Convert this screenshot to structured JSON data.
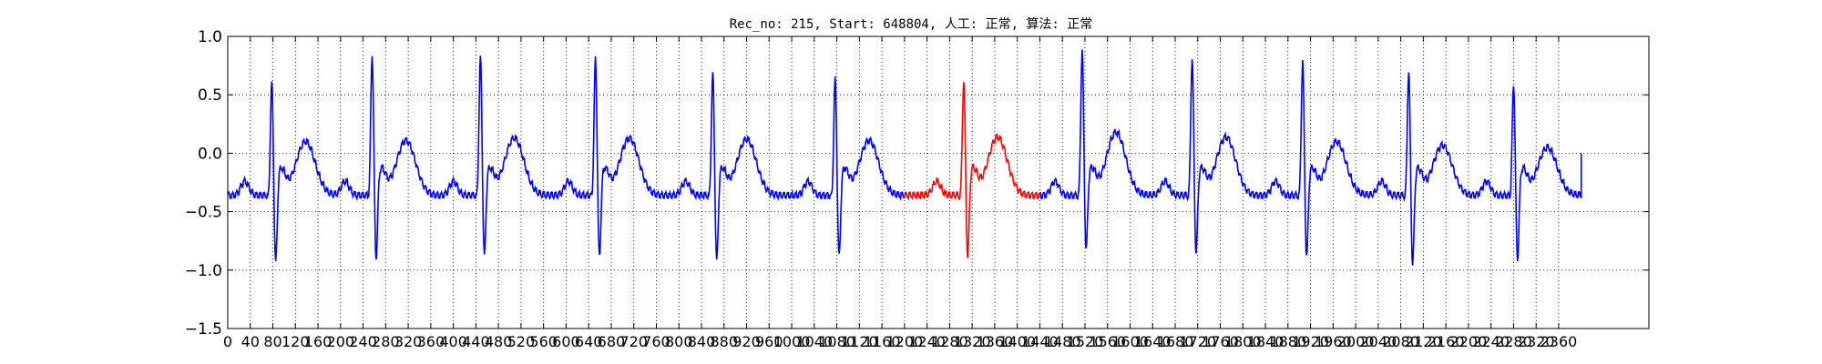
{
  "chart_data": {
    "type": "line",
    "title": "Rec_no: 215, Start: 648804, 人工: 正常, 算法: 正常",
    "xlabel": "",
    "ylabel": "",
    "xlim": [
      0,
      2520
    ],
    "ylim": [
      -1.5,
      1.0
    ],
    "grid": true,
    "grid_style": "dotted",
    "yticks": [
      "−1.5",
      "−1.0",
      "−0.5",
      "0.0",
      "0.5",
      "1.0"
    ],
    "ytick_values": [
      -1.5,
      -1.0,
      -0.5,
      0.0,
      0.5,
      1.0
    ],
    "xticks": [
      "0",
      "40",
      "80",
      "120",
      "160",
      "200",
      "240",
      "280",
      "320",
      "360",
      "400",
      "440",
      "480",
      "520",
      "560",
      "600",
      "640",
      "680",
      "720",
      "760",
      "800",
      "840",
      "880",
      "920",
      "960",
      "1000",
      "1040",
      "1080",
      "1120",
      "1160",
      "1200",
      "1240",
      "1280",
      "1320",
      "1360",
      "1400",
      "1440",
      "1480",
      "1520",
      "1560",
      "1600",
      "1640",
      "1680",
      "1720",
      "1760",
      "1800",
      "1840",
      "1880",
      "1920",
      "1960",
      "2000",
      "2040",
      "2080",
      "2120",
      "2160",
      "2200",
      "2240",
      "2280",
      "2320",
      "2360"
    ],
    "series_color": "#0000ff",
    "highlight_color": "#ff0000",
    "signal_end": 2400,
    "highlight_range": [
      1200,
      1440
    ],
    "baseline": -0.36,
    "beats": [
      {
        "r": 78,
        "r_amp": 0.61,
        "s_amp": -1.08,
        "t_amp": 0.12
      },
      {
        "r": 256,
        "r_amp": 0.85,
        "s_amp": -1.05,
        "t_amp": 0.13
      },
      {
        "r": 448,
        "r_amp": 0.83,
        "s_amp": -1.03,
        "t_amp": 0.15
      },
      {
        "r": 652,
        "r_amp": 0.81,
        "s_amp": -1.04,
        "t_amp": 0.15
      },
      {
        "r": 860,
        "r_amp": 0.69,
        "s_amp": -1.07,
        "t_amp": 0.14
      },
      {
        "r": 1077,
        "r_amp": 0.64,
        "s_amp": -1.03,
        "t_amp": 0.13
      },
      {
        "r": 1305,
        "r_amp": 0.63,
        "s_amp": -1.03,
        "t_amp": 0.16
      },
      {
        "r": 1515,
        "r_amp": 0.88,
        "s_amp": -0.98,
        "t_amp": 0.2
      },
      {
        "r": 1710,
        "r_amp": 0.82,
        "s_amp": -1.0,
        "t_amp": 0.16
      },
      {
        "r": 1906,
        "r_amp": 0.79,
        "s_amp": -1.04,
        "t_amp": 0.12
      },
      {
        "r": 2094,
        "r_amp": 0.71,
        "s_amp": -1.1,
        "t_amp": 0.09
      },
      {
        "r": 2280,
        "r_amp": 0.6,
        "s_amp": -1.05,
        "t_amp": 0.07
      }
    ]
  }
}
